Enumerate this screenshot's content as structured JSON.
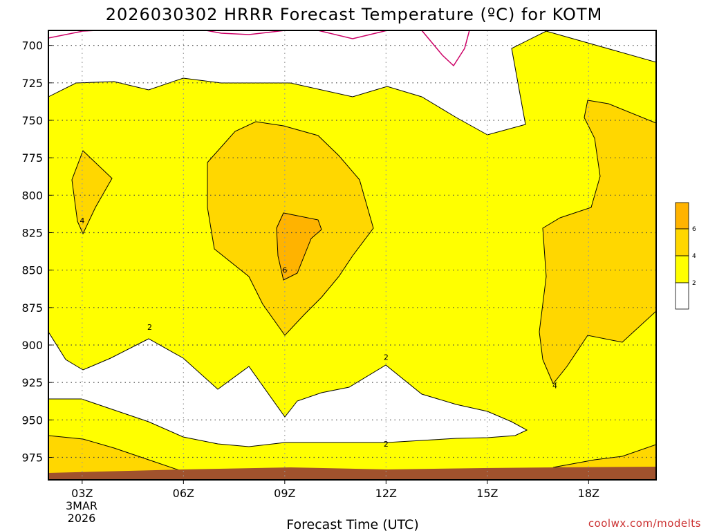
{
  "chart_data": {
    "type": "contour",
    "title": "2026030302 HRRR Forecast Temperature (ºC) for KOTM",
    "xlabel": "Forecast Time (UTC)",
    "ylabel": "",
    "credit": "coolwx.com/modelts",
    "x_ticks": [
      "03Z",
      "06Z",
      "09Z",
      "12Z",
      "15Z",
      "18Z"
    ],
    "x_date_label": [
      "3MAR",
      "2026"
    ],
    "xlim_hours": [
      2,
      20
    ],
    "y_ticks": [
      "700",
      "725",
      "750",
      "775",
      "800",
      "825",
      "850",
      "875",
      "900",
      "925",
      "950",
      "975"
    ],
    "ylim_hpa": [
      690,
      990
    ],
    "y_axis": "pressure (inverted)",
    "grid": true,
    "legend": {
      "position": "right",
      "levels": [
        "2",
        "4",
        "6"
      ]
    },
    "contour_labels": [
      {
        "text": "4",
        "t": 3.0,
        "p": 817
      },
      {
        "text": "6",
        "t": 9.0,
        "p": 850
      },
      {
        "text": "2",
        "t": 5.0,
        "p": 888
      },
      {
        "text": "2",
        "t": 12.0,
        "p": 908
      },
      {
        "text": "4",
        "t": 17.0,
        "p": 927
      },
      {
        "text": "2",
        "t": 12.0,
        "p": 966
      }
    ],
    "colors": {
      "below2": "#ffffff",
      "2to4": "#ffff00",
      "4to6": "#ffd700",
      "above6": "#ffb300",
      "ground": "#a0522d",
      "zero_line": "#cc0066"
    }
  }
}
